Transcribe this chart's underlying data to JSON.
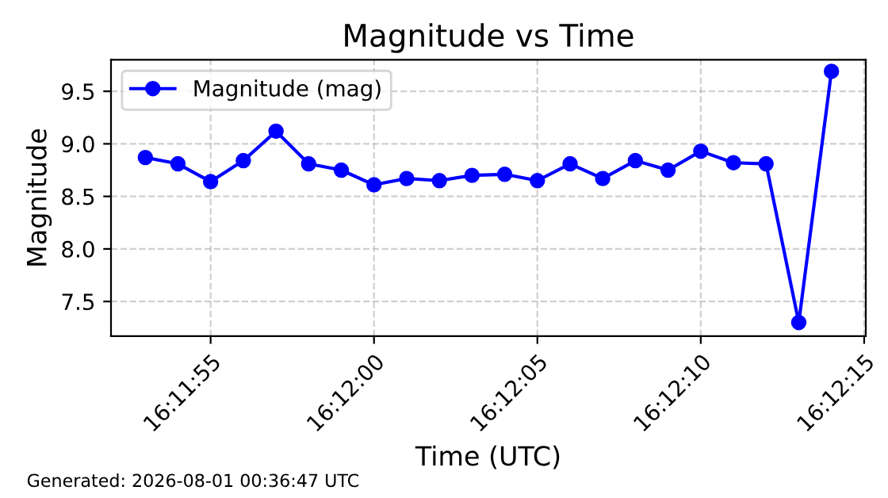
{
  "chart_data": {
    "type": "line",
    "title": "Magnitude vs Time",
    "xlabel": "Time (UTC)",
    "ylabel": "Magnitude",
    "x": [
      16.198056,
      16.198333,
      16.198611,
      16.198889,
      16.199167,
      16.199444,
      16.199722,
      16.2,
      16.200278,
      16.200556,
      16.200833,
      16.201111,
      16.201389,
      16.201667,
      16.201944,
      16.202222,
      16.2025,
      16.202778,
      16.203056,
      16.203333,
      16.203611,
      16.203889
    ],
    "series": [
      {
        "name": "Magnitude (mag)",
        "color": "#0000ff",
        "values": [
          8.87,
          8.81,
          8.64,
          8.84,
          9.12,
          8.81,
          8.75,
          8.61,
          8.67,
          8.65,
          8.7,
          8.71,
          8.65,
          8.81,
          8.67,
          8.84,
          8.75,
          8.93,
          8.82,
          8.81,
          7.3,
          9.69
        ]
      }
    ],
    "xlim": [
      16.197764,
      16.204181
    ],
    "xticks": [
      {
        "value": 16.198611,
        "label": "16:11:55"
      },
      {
        "value": 16.2,
        "label": "16:12:00"
      },
      {
        "value": 16.201389,
        "label": "16:12:05"
      },
      {
        "value": 16.202778,
        "label": "16:12:10"
      },
      {
        "value": 16.204167,
        "label": "16:12:15"
      }
    ],
    "ylim": [
      7.17,
      9.8
    ],
    "yticks": [
      7.5,
      {
        "value": 8,
        "label": "8.0"
      },
      8.5,
      {
        "value": 9,
        "label": "9.0"
      },
      9.5
    ],
    "annotations": [
      "Generated: 2026-08-01 00:36:47 UTC"
    ],
    "grid": true,
    "legend": "top left",
    "marker": "circle",
    "line_style": "solid"
  }
}
